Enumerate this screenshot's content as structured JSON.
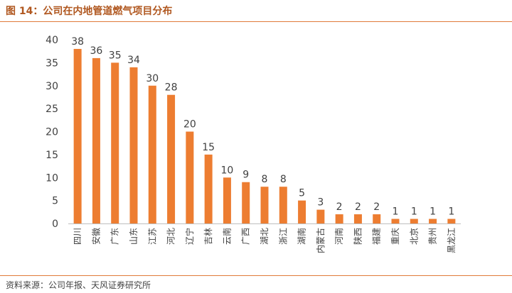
{
  "header": {
    "title": "图 14：公司在内地管道燃气项目分布"
  },
  "footer": {
    "source": "资料来源：公司年报、天风证券研究所"
  },
  "chart_data": {
    "type": "bar",
    "title": "图 14：公司在内地管道燃气项目分布",
    "xlabel": "",
    "ylabel": "",
    "categories": [
      "四川",
      "安徽",
      "广东",
      "山东",
      "江苏",
      "河北",
      "辽宁",
      "吉林",
      "云南",
      "广西",
      "湖北",
      "浙江",
      "湖南",
      "内蒙古",
      "河南",
      "陕西",
      "福建",
      "重庆",
      "北京",
      "贵州",
      "黑龙江"
    ],
    "values": [
      38,
      36,
      35,
      34,
      30,
      28,
      20,
      15,
      10,
      9,
      8,
      8,
      5,
      3,
      2,
      2,
      2,
      1,
      1,
      1,
      1
    ],
    "ylim": [
      0,
      40
    ],
    "yticks": [
      0,
      5,
      10,
      15,
      20,
      25,
      30,
      35,
      40
    ],
    "grid": false,
    "legend": "none",
    "bar_color": "#ed7d31",
    "axis_color": "#bfbfbf",
    "label_color": "#404040"
  }
}
